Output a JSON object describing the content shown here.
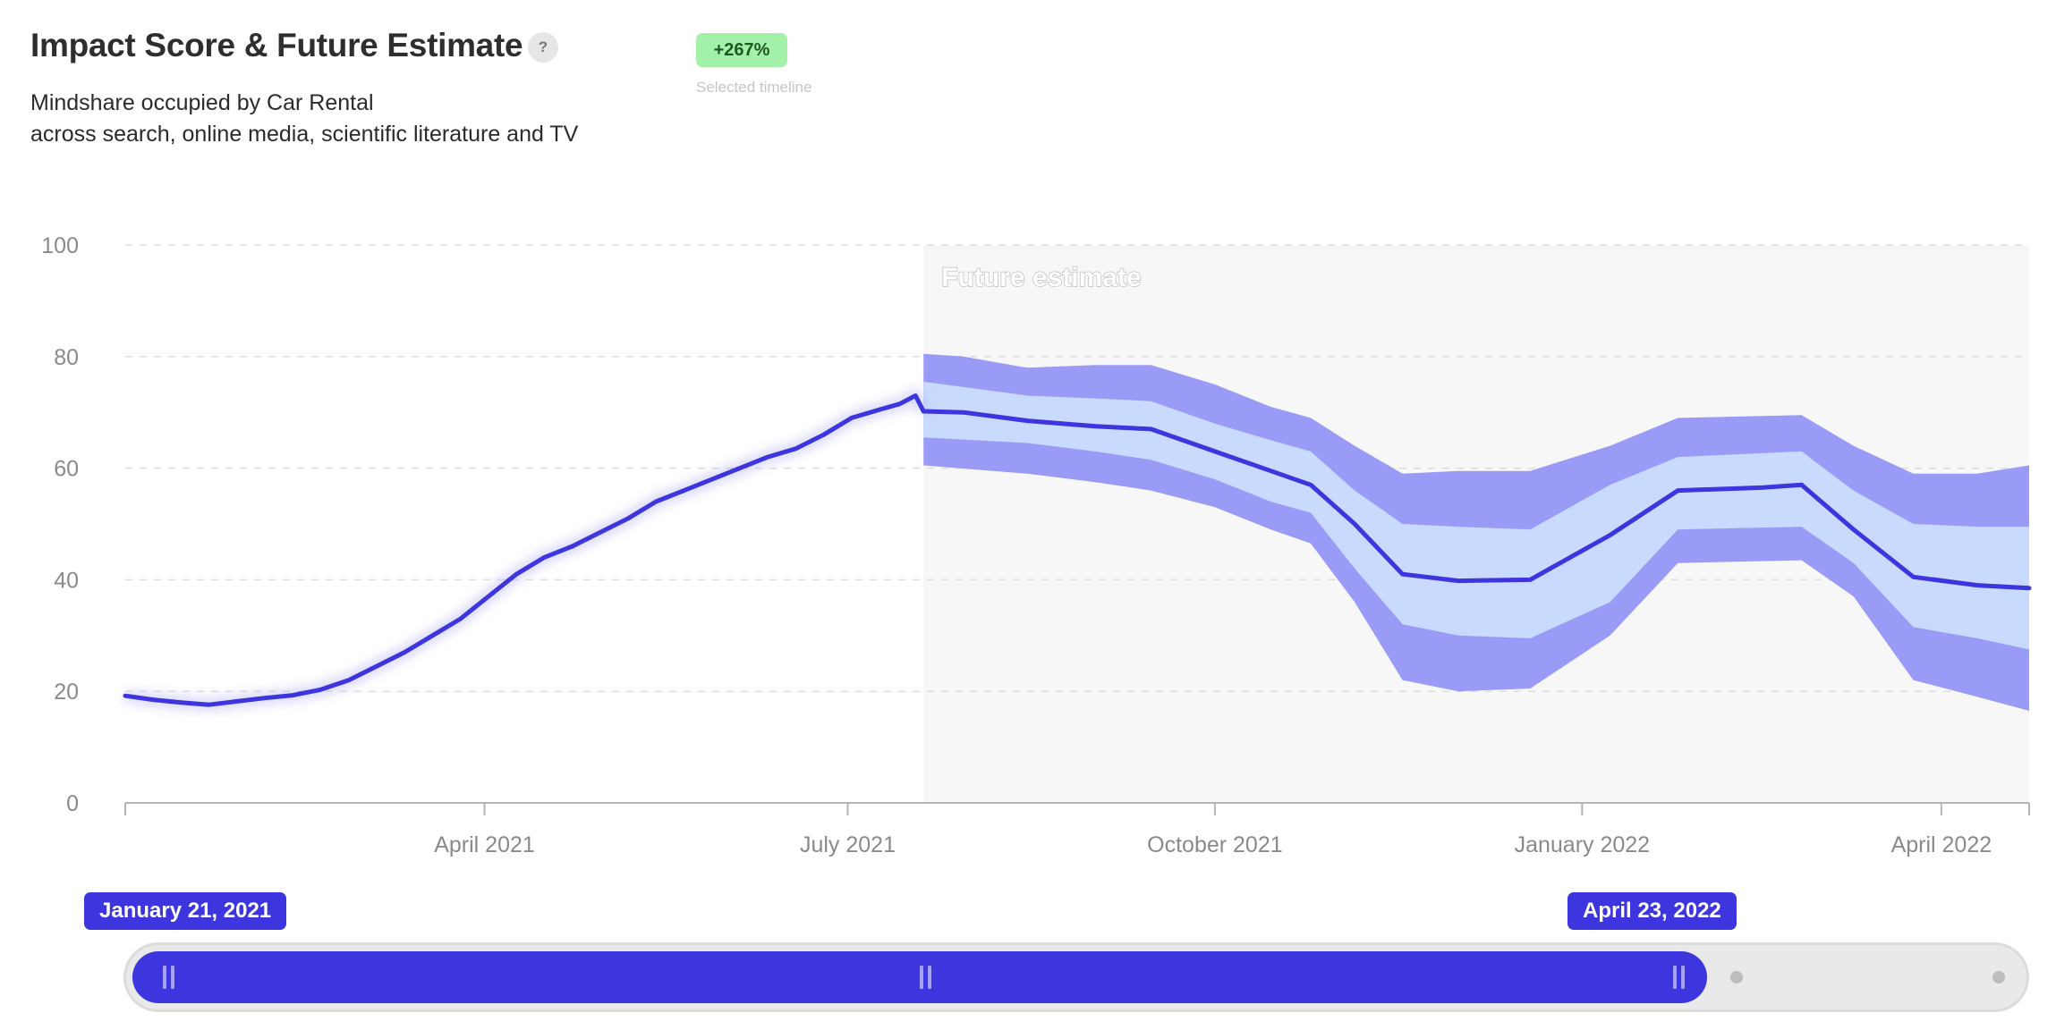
{
  "header": {
    "title": "Impact Score & Future Estimate",
    "help_label": "?",
    "subtitle_line1": "Mindshare occupied by Car Rental",
    "subtitle_line2": "across search, online media, scientific literature and TV",
    "change_badge": "+267%",
    "change_caption": "Selected timeline"
  },
  "colors": {
    "line": "#3d35dd",
    "band_inner": "#c8dafd",
    "band_outer": "#9a9bf6",
    "future_bg": "#f7f7f7",
    "badge_bg": "#a3f0a8"
  },
  "chart_data": {
    "type": "line",
    "y_ticks": [
      "0",
      "20",
      "40",
      "60",
      "80",
      "100"
    ],
    "ylim": [
      0,
      100
    ],
    "x_range": [
      "2021-01-01",
      "2022-04-23"
    ],
    "x_tick_labels": [
      {
        "date": "2021-04-01",
        "label": "April 2021"
      },
      {
        "date": "2021-07-01",
        "label": "July 2021"
      },
      {
        "date": "2021-10-01",
        "label": "October 2021"
      },
      {
        "date": "2022-01-01",
        "label": "January 2022"
      },
      {
        "date": "2022-04-01",
        "label": "April 2022"
      }
    ],
    "future_region_label": "Future estimate",
    "future_start": "2021-07-20",
    "grid": "dashed horizontal",
    "series_history": {
      "points": [
        [
          "2021-01-01",
          19.2
        ],
        [
          "2021-01-08",
          18.5
        ],
        [
          "2021-01-15",
          18.0
        ],
        [
          "2021-01-22",
          17.6
        ],
        [
          "2021-01-29",
          18.2
        ],
        [
          "2021-02-05",
          18.8
        ],
        [
          "2021-02-12",
          19.3
        ],
        [
          "2021-02-19",
          20.3
        ],
        [
          "2021-02-26",
          22.0
        ],
        [
          "2021-03-05",
          24.5
        ],
        [
          "2021-03-12",
          27.0
        ],
        [
          "2021-03-19",
          30.0
        ],
        [
          "2021-03-26",
          33.0
        ],
        [
          "2021-04-02",
          37.0
        ],
        [
          "2021-04-09",
          41.0
        ],
        [
          "2021-04-16",
          44.0
        ],
        [
          "2021-04-23",
          46.0
        ],
        [
          "2021-04-30",
          48.5
        ],
        [
          "2021-05-07",
          51.0
        ],
        [
          "2021-05-14",
          54.0
        ],
        [
          "2021-05-21",
          56.0
        ],
        [
          "2021-05-28",
          58.0
        ],
        [
          "2021-06-04",
          60.0
        ],
        [
          "2021-06-11",
          62.0
        ],
        [
          "2021-06-18",
          63.5
        ],
        [
          "2021-06-25",
          66.0
        ],
        [
          "2021-07-02",
          69.0
        ],
        [
          "2021-07-09",
          70.5
        ],
        [
          "2021-07-14",
          71.5
        ],
        [
          "2021-07-18",
          73.0
        ],
        [
          "2021-07-20",
          70.2
        ]
      ]
    },
    "series_forecast": {
      "center": [
        [
          "2021-07-20",
          70.2
        ],
        [
          "2021-07-30",
          70.0
        ],
        [
          "2021-08-15",
          68.5
        ],
        [
          "2021-09-01",
          67.5
        ],
        [
          "2021-09-15",
          67.0
        ],
        [
          "2021-10-01",
          63.0
        ],
        [
          "2021-10-15",
          59.5
        ],
        [
          "2021-10-25",
          57.0
        ],
        [
          "2021-11-05",
          50.0
        ],
        [
          "2021-11-17",
          41.0
        ],
        [
          "2021-12-01",
          39.8
        ],
        [
          "2021-12-19",
          40.0
        ],
        [
          "2022-01-08",
          48.0
        ],
        [
          "2022-01-25",
          56.0
        ],
        [
          "2022-02-15",
          56.5
        ],
        [
          "2022-02-25",
          57.0
        ],
        [
          "2022-03-10",
          49.0
        ],
        [
          "2022-03-25",
          40.5
        ],
        [
          "2022-04-10",
          39.0
        ],
        [
          "2022-04-23",
          38.5
        ]
      ],
      "inner_upper": [
        [
          "2021-07-20",
          75.5
        ],
        [
          "2021-08-15",
          73.0
        ],
        [
          "2021-09-01",
          72.5
        ],
        [
          "2021-09-15",
          72.0
        ],
        [
          "2021-10-01",
          68.0
        ],
        [
          "2021-10-15",
          65.0
        ],
        [
          "2021-10-25",
          63.0
        ],
        [
          "2021-11-05",
          56.0
        ],
        [
          "2021-11-17",
          50.0
        ],
        [
          "2021-12-01",
          49.5
        ],
        [
          "2021-12-19",
          49.0
        ],
        [
          "2022-01-08",
          57.0
        ],
        [
          "2022-01-25",
          62.0
        ],
        [
          "2022-02-25",
          63.0
        ],
        [
          "2022-03-10",
          56.0
        ],
        [
          "2022-03-25",
          50.0
        ],
        [
          "2022-04-10",
          49.5
        ],
        [
          "2022-04-23",
          49.5
        ]
      ],
      "inner_lower": [
        [
          "2021-07-20",
          65.5
        ],
        [
          "2021-08-15",
          64.5
        ],
        [
          "2021-09-01",
          63.0
        ],
        [
          "2021-09-15",
          61.5
        ],
        [
          "2021-10-01",
          58.0
        ],
        [
          "2021-10-15",
          54.0
        ],
        [
          "2021-10-25",
          52.0
        ],
        [
          "2021-11-05",
          42.0
        ],
        [
          "2021-11-17",
          32.0
        ],
        [
          "2021-12-01",
          30.0
        ],
        [
          "2021-12-19",
          29.5
        ],
        [
          "2022-01-08",
          36.0
        ],
        [
          "2022-01-25",
          49.0
        ],
        [
          "2022-02-25",
          49.5
        ],
        [
          "2022-03-10",
          43.0
        ],
        [
          "2022-03-25",
          31.5
        ],
        [
          "2022-04-10",
          29.5
        ],
        [
          "2022-04-23",
          27.5
        ]
      ],
      "outer_upper": [
        [
          "2021-07-20",
          80.5
        ],
        [
          "2021-07-30",
          80.0
        ],
        [
          "2021-08-15",
          78.0
        ],
        [
          "2021-09-01",
          78.5
        ],
        [
          "2021-09-15",
          78.5
        ],
        [
          "2021-10-01",
          75.0
        ],
        [
          "2021-10-15",
          71.0
        ],
        [
          "2021-10-25",
          69.0
        ],
        [
          "2021-11-05",
          64.0
        ],
        [
          "2021-11-17",
          59.0
        ],
        [
          "2021-12-01",
          59.5
        ],
        [
          "2021-12-19",
          59.5
        ],
        [
          "2022-01-08",
          64.0
        ],
        [
          "2022-01-25",
          69.0
        ],
        [
          "2022-02-25",
          69.5
        ],
        [
          "2022-03-10",
          64.0
        ],
        [
          "2022-03-25",
          59.0
        ],
        [
          "2022-04-10",
          59.0
        ],
        [
          "2022-04-23",
          60.5
        ]
      ],
      "outer_lower": [
        [
          "2021-07-20",
          60.5
        ],
        [
          "2021-08-15",
          59.0
        ],
        [
          "2021-09-01",
          57.5
        ],
        [
          "2021-09-15",
          56.0
        ],
        [
          "2021-10-01",
          53.0
        ],
        [
          "2021-10-15",
          49.0
        ],
        [
          "2021-10-25",
          46.5
        ],
        [
          "2021-11-05",
          36.0
        ],
        [
          "2021-11-17",
          22.0
        ],
        [
          "2021-12-01",
          20.0
        ],
        [
          "2021-12-19",
          20.5
        ],
        [
          "2022-01-08",
          30.0
        ],
        [
          "2022-01-25",
          43.0
        ],
        [
          "2022-02-25",
          43.5
        ],
        [
          "2022-03-10",
          37.0
        ],
        [
          "2022-03-25",
          22.0
        ],
        [
          "2022-04-10",
          19.0
        ],
        [
          "2022-04-23",
          16.5
        ]
      ]
    }
  },
  "range_selector": {
    "start_label": "January 21, 2021",
    "end_label": "April 23, 2022"
  }
}
